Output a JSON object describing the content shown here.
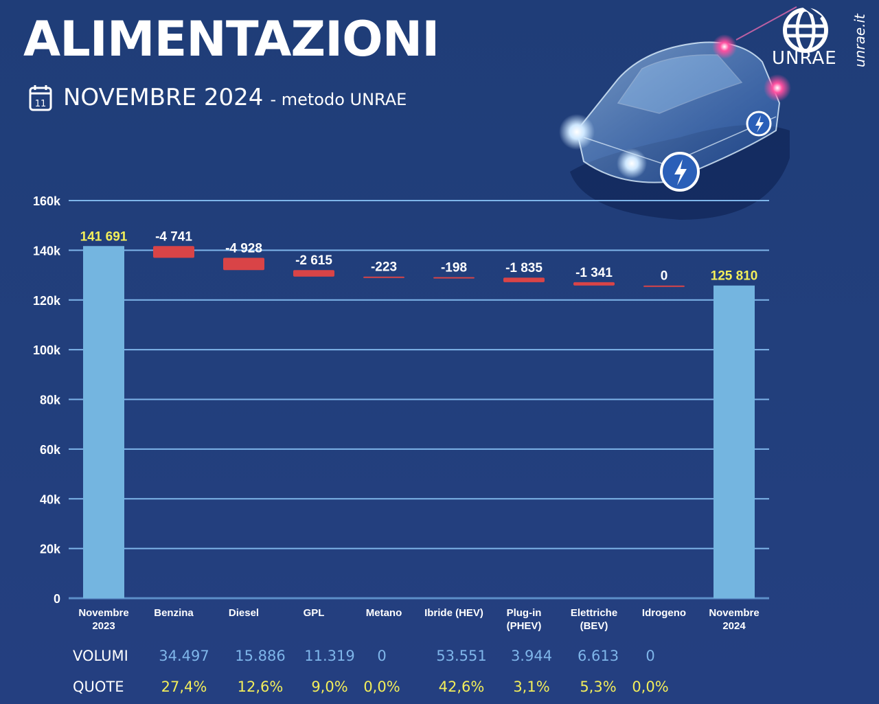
{
  "header": {
    "title": "ALIMENTAZIONI",
    "subtitle": "NOVEMBRE 2024",
    "subtitle_suffix": "- metodo UNRAE",
    "calendar_day": "11",
    "brand": "UNRAE",
    "site": "unrae.it"
  },
  "colors": {
    "total_bar": "#74b5e0",
    "decrease_bar": "#d94447",
    "grid": "#7fb6ea",
    "total_label": "#f3ee5a",
    "change_label": "#ffffff"
  },
  "icons": [
    "calendar-icon",
    "unrae-globe-logo",
    "electric-car-illustration"
  ],
  "chart_data": {
    "type": "bar",
    "subtype": "waterfall",
    "categories": [
      "Novembre 2023",
      "Benzina",
      "Diesel",
      "GPL",
      "Metano",
      "Ibride (HEV)",
      "Plug-in (PHEV)",
      "Elettriche (BEV)",
      "Idrogeno",
      "Novembre 2024"
    ],
    "category_lines": [
      [
        "Novembre",
        "2023"
      ],
      [
        "Benzina"
      ],
      [
        "Diesel"
      ],
      [
        "GPL"
      ],
      [
        "Metano"
      ],
      [
        "Ibride (HEV)"
      ],
      [
        "Plug-in",
        "(PHEV)"
      ],
      [
        "Elettriche",
        "(BEV)"
      ],
      [
        "Idrogeno"
      ],
      [
        "Novembre",
        "2024"
      ]
    ],
    "values": [
      141691,
      -4741,
      -4928,
      -2615,
      -223,
      -198,
      -1835,
      -1341,
      0,
      125810
    ],
    "kinds": [
      "total",
      "change",
      "change",
      "change",
      "change",
      "change",
      "change",
      "change",
      "change",
      "total"
    ],
    "value_labels": [
      "141 691",
      "-4 741",
      "-4 928",
      "-2 615",
      "-223",
      "-198",
      "-1 835",
      "-1 341",
      "0",
      "125 810"
    ],
    "ylim": [
      0,
      160000
    ],
    "yticks": [
      0,
      20000,
      40000,
      60000,
      80000,
      100000,
      120000,
      140000,
      160000
    ],
    "ytick_labels": [
      "0",
      "20k",
      "40k",
      "60k",
      "80k",
      "100k",
      "120k",
      "140k",
      "160k"
    ],
    "grid": true
  },
  "table": {
    "volumi_label": "VOLUMI",
    "quote_label": "QUOTE",
    "volumi": [
      "34.497",
      "15.886",
      "11.319",
      "0",
      "53.551",
      "3.944",
      "6.613",
      "0"
    ],
    "quote": [
      "27,4%",
      "12,6%",
      "9,0%",
      "0,0%",
      "42,6%",
      "3,1%",
      "5,3%",
      "0,0%"
    ]
  }
}
